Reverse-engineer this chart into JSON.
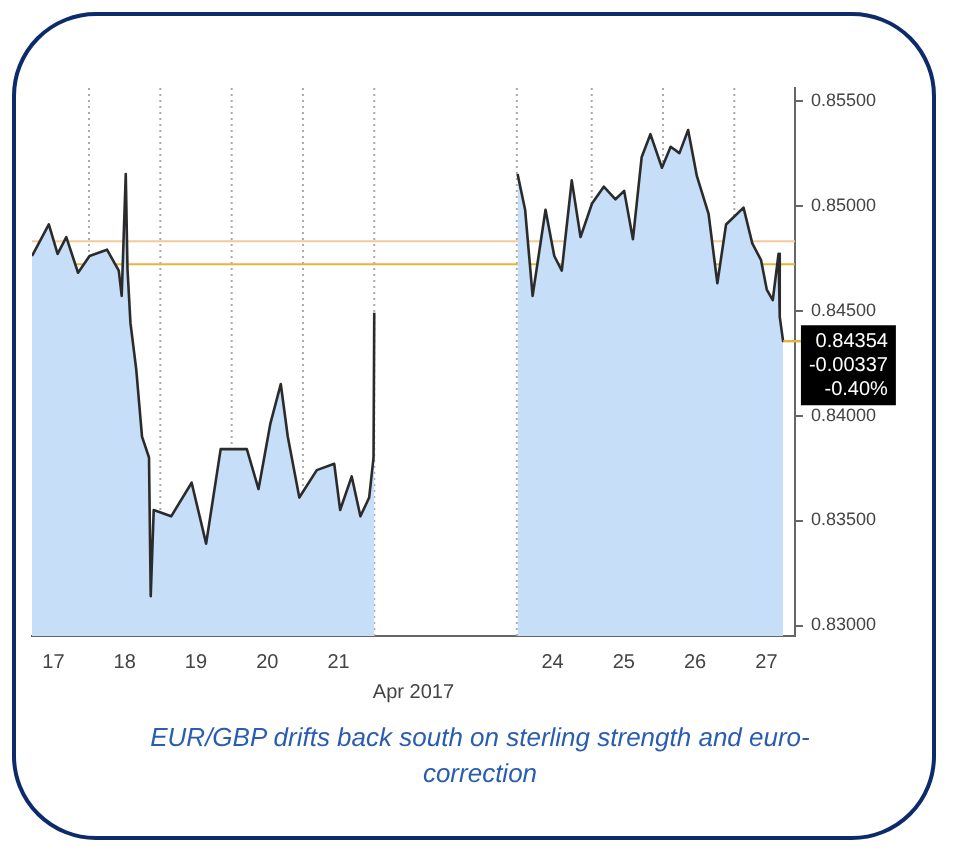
{
  "chart_data": {
    "type": "area",
    "xlabel": "Apr 2017",
    "x": [
      16.7,
      16.936,
      17.059,
      17.181,
      17.346,
      17.507,
      17.752,
      17.917,
      17.958,
      18.015,
      18.039,
      18.081,
      18.162,
      18.243,
      18.341,
      18.365,
      18.407,
      18.652,
      18.939,
      19.142,
      19.346,
      19.713,
      19.877,
      20.042,
      20.189,
      20.287,
      20.449,
      20.694,
      20.939,
      21.022,
      21.184,
      21.306,
      21.429,
      21.49,
      21.5,
      22.5,
      23.51,
      23.616,
      23.721,
      23.902,
      24.025,
      24.13,
      24.27,
      24.393,
      24.554,
      24.719,
      24.883,
      25.005,
      25.128,
      25.25,
      25.373,
      25.535,
      25.657,
      25.78,
      25.902,
      26.025,
      26.189,
      26.312,
      26.434,
      26.679,
      26.802,
      26.925,
      27.005,
      27.089,
      27.17,
      27.187,
      27.236
    ],
    "series": [
      {
        "color": "#c6def7",
        "values": [
          0.8476,
          0.8491,
          0.8477,
          0.8485,
          0.8468,
          0.8476,
          0.8479,
          0.8469,
          0.8457,
          0.8515,
          0.847,
          0.8444,
          0.8422,
          0.839,
          0.838,
          0.8314,
          0.8355,
          0.8352,
          0.8368,
          0.8339,
          0.8384,
          0.8384,
          0.8365,
          0.8396,
          0.8415,
          0.839,
          0.8361,
          0.8374,
          0.8377,
          0.8355,
          0.8371,
          0.8352,
          0.8361,
          0.838,
          0.8449,
          null,
          0.8515,
          0.8498,
          0.8457,
          0.8498,
          0.8476,
          0.8469,
          0.8512,
          0.8485,
          0.8501,
          0.8509,
          0.8503,
          0.8507,
          0.8484,
          0.8523,
          0.8534,
          0.8518,
          0.8528,
          0.8525,
          0.8536,
          0.8514,
          0.8496,
          0.8463,
          0.8491,
          0.8499,
          0.8482,
          0.8474,
          0.846,
          0.8455,
          0.8477,
          0.8447,
          0.8435
        ]
      }
    ],
    "xlim": [
      16.7,
      27.4
    ],
    "xticks": [
      17,
      18,
      19,
      20,
      21,
      24,
      25,
      26,
      27
    ],
    "ylim": [
      0.8295,
      0.8556
    ],
    "yticks": [
      {
        "value": 0.83,
        "label": "0.83000"
      },
      {
        "value": 0.835,
        "label": "0.83500"
      },
      {
        "value": 0.84,
        "label": "0.84000"
      },
      {
        "value": 0.845,
        "label": "0.84500"
      },
      {
        "value": 0.85,
        "label": "0.85000"
      },
      {
        "value": 0.855,
        "label": "0.85500"
      }
    ],
    "grid": false,
    "marker": "none",
    "ref_lines": [
      {
        "axis": "x",
        "value": 17.5,
        "color": "#aaaaaa",
        "line_style": "dotted"
      },
      {
        "axis": "x",
        "value": 18.5,
        "color": "#aaaaaa",
        "line_style": "dotted"
      },
      {
        "axis": "x",
        "value": 19.5,
        "color": "#aaaaaa",
        "line_style": "dotted"
      },
      {
        "axis": "x",
        "value": 20.5,
        "color": "#aaaaaa",
        "line_style": "dotted"
      },
      {
        "axis": "x",
        "value": 21.5,
        "color": "#aaaaaa",
        "line_style": "dotted"
      },
      {
        "axis": "x",
        "value": 23.5,
        "color": "#aaaaaa",
        "line_style": "dotted"
      },
      {
        "axis": "x",
        "value": 24.55,
        "color": "#aaaaaa",
        "line_style": "dotted"
      },
      {
        "axis": "x",
        "value": 25.55,
        "color": "#aaaaaa",
        "line_style": "dotted"
      },
      {
        "axis": "x",
        "value": 26.55,
        "color": "#aaaaaa",
        "line_style": "dotted"
      },
      {
        "axis": "y",
        "value": 0.8483,
        "color": "#f5c89a",
        "line_style": "solid"
      },
      {
        "axis": "y",
        "value": 0.8472,
        "color": "#e6b43c",
        "line_style": "solid"
      }
    ],
    "annotations": [
      {
        "text": "0.84354\n-0.00337\n-0.40%",
        "x": 27.236,
        "y": 0.84354
      },
      "EUR/GBP drifts back south on sterling strength and euro-correction"
    ]
  }
}
